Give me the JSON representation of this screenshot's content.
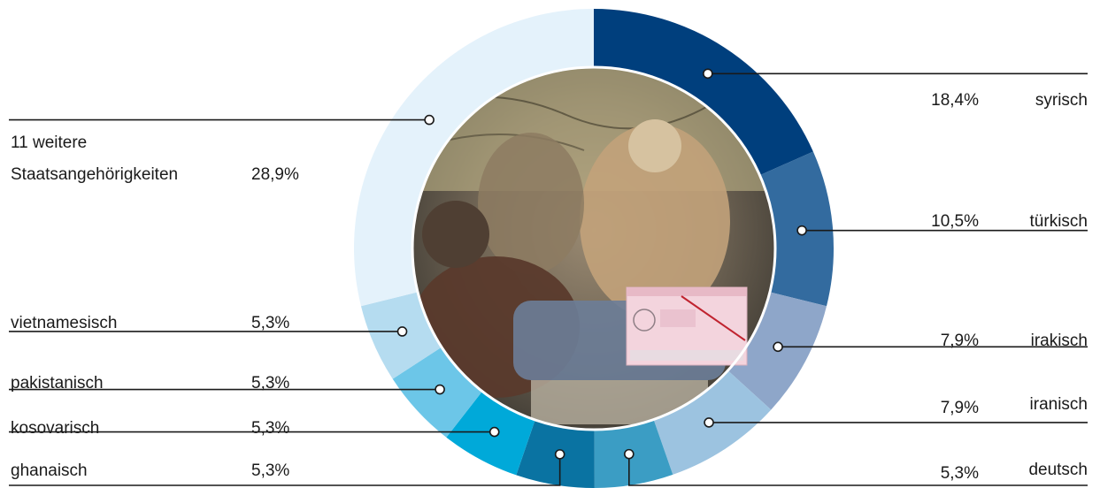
{
  "chart_data": {
    "type": "pie",
    "variant": "donut",
    "center_image": "photo of migrants sitting in a vehicle, with a residence permit document inset",
    "unit": "%",
    "slices": [
      {
        "label": "syrisch",
        "value": 18.4,
        "value_text": "18,4%",
        "color": "#003f7d"
      },
      {
        "label": "türkisch",
        "value": 10.5,
        "value_text": "10,5%",
        "color": "#336b9f"
      },
      {
        "label": "irakisch",
        "value": 7.9,
        "value_text": "7,9%",
        "color": "#8ea6c9"
      },
      {
        "label": "iranisch",
        "value": 7.9,
        "value_text": "7,9%",
        "color": "#9cc3e0"
      },
      {
        "label": "deutsch",
        "value": 5.3,
        "value_text": "5,3%",
        "color": "#3b9dc4"
      },
      {
        "label": "ghanaisch",
        "value": 5.3,
        "value_text": "5,3%",
        "color": "#0a73a2"
      },
      {
        "label": "kosovarisch",
        "value": 5.3,
        "value_text": "5,3%",
        "color": "#00a9d9"
      },
      {
        "label": "pakistanisch",
        "value": 5.3,
        "value_text": "5,3%",
        "color": "#6cc6e8"
      },
      {
        "label": "vietnamesisch",
        "value": 5.3,
        "value_text": "5,3%",
        "color": "#b5dcf0"
      },
      {
        "label": "11 weitere Staatsangehörigkeiten",
        "label_lines": [
          "11 weitere",
          "Staatsangehörigkeiten"
        ],
        "value": 28.9,
        "value_text": "28,9%",
        "color": "#e4f2fb"
      }
    ]
  }
}
